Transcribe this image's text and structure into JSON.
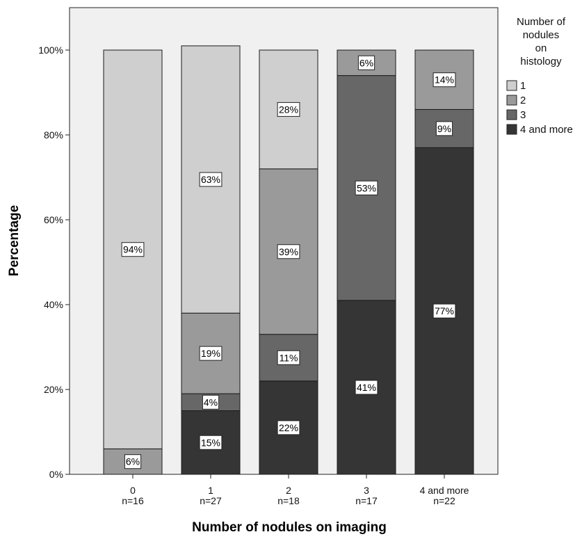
{
  "chart_data": {
    "type": "bar",
    "stacked": true,
    "xlabel": "Number of nodules on imaging",
    "ylabel": "Percentage",
    "ylim": [
      0,
      110
    ],
    "yticks": [
      "0%",
      "20%",
      "40%",
      "60%",
      "80%",
      "100%"
    ],
    "categories": [
      "0",
      "1",
      "2",
      "3",
      "4 and more"
    ],
    "category_counts": [
      "n=16",
      "n=27",
      "n=18",
      "n=17",
      "n=22"
    ],
    "legend_title": [
      "Number of",
      "nodules",
      "on",
      "histology"
    ],
    "legend_position": "right",
    "grid": false,
    "series": [
      {
        "name": "4 and more",
        "color": "#353535",
        "values": [
          0,
          15,
          22,
          41,
          77
        ],
        "labels": [
          "",
          "15%",
          "22%",
          "41%",
          "77%"
        ]
      },
      {
        "name": "3",
        "color": "#676767",
        "values": [
          0,
          4,
          11,
          53,
          9
        ],
        "labels": [
          "",
          "4%",
          "11%",
          "53%",
          "9%"
        ]
      },
      {
        "name": "2",
        "color": "#9a9a9a",
        "values": [
          6,
          19,
          39,
          6,
          14
        ],
        "labels": [
          "6%",
          "19%",
          "39%",
          "6%",
          "14%"
        ]
      },
      {
        "name": "1",
        "color": "#cfcfcf",
        "values": [
          94,
          63,
          28,
          0,
          0
        ],
        "labels": [
          "94%",
          "63%",
          "28%",
          "",
          ""
        ]
      }
    ],
    "legend_order": [
      "1",
      "2",
      "3",
      "4 and more"
    ],
    "plot_background": "#f0f0f0"
  }
}
